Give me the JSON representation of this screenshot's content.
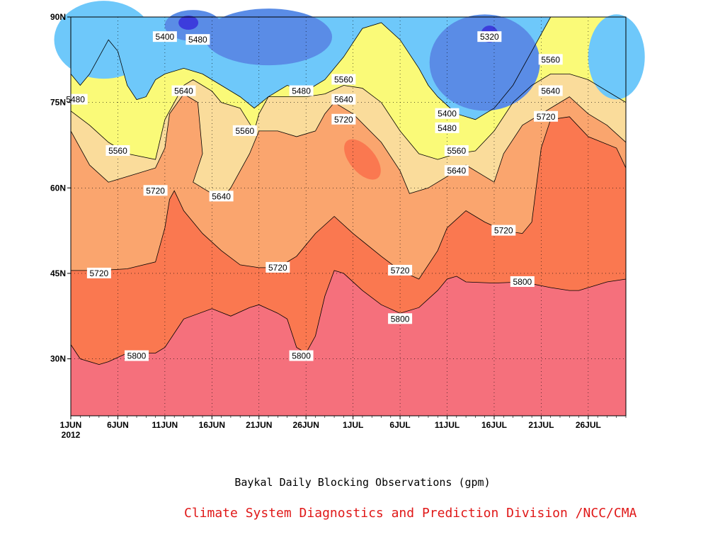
{
  "chart_data": {
    "type": "heatmap",
    "subtype": "filled-contour",
    "title": "Baykal Daily Blocking Observations (gpm)",
    "xlabel": "",
    "ylabel": "",
    "units": "gpm",
    "year_label": "2012",
    "x_range_days": [
      0,
      59
    ],
    "y_range_deg": [
      20,
      90
    ],
    "x_ticks": [
      {
        "day": 0,
        "label": "1JUN"
      },
      {
        "day": 5,
        "label": "6JUN"
      },
      {
        "day": 10,
        "label": "11JUN"
      },
      {
        "day": 15,
        "label": "16JUN"
      },
      {
        "day": 20,
        "label": "21JUN"
      },
      {
        "day": 25,
        "label": "26JUN"
      },
      {
        "day": 30,
        "label": "1JUL"
      },
      {
        "day": 35,
        "label": "6JUL"
      },
      {
        "day": 40,
        "label": "11JUL"
      },
      {
        "day": 45,
        "label": "16JUL"
      },
      {
        "day": 50,
        "label": "21JUL"
      },
      {
        "day": 55,
        "label": "26JUL"
      }
    ],
    "y_ticks": [
      {
        "lat": 30,
        "label": "30N"
      },
      {
        "lat": 45,
        "label": "45N"
      },
      {
        "lat": 60,
        "label": "60N"
      },
      {
        "lat": 75,
        "label": "75N"
      },
      {
        "lat": 90,
        "label": "90N"
      }
    ],
    "levels": [
      {
        "value": 5240,
        "color": "#3c3cdc"
      },
      {
        "value": 5320,
        "color": "#5a8ce6"
      },
      {
        "value": 5400,
        "color": "#6ec8fa"
      },
      {
        "value": 5480,
        "color": "#fafa78"
      },
      {
        "value": 5560,
        "color": "#fadc9b"
      },
      {
        "value": 5640,
        "color": "#faa56e"
      },
      {
        "value": 5720,
        "color": "#fa7850"
      },
      {
        "value": 5800,
        "color": "#f5707c"
      }
    ],
    "contour_5800_lat": [
      [
        0,
        32.5
      ],
      [
        1,
        30
      ],
      [
        3,
        29
      ],
      [
        4,
        29.5
      ],
      [
        6,
        31
      ],
      [
        9,
        31
      ],
      [
        10,
        32
      ],
      [
        12,
        37
      ],
      [
        15,
        38.8
      ],
      [
        17,
        37.5
      ],
      [
        19,
        39
      ],
      [
        20,
        39.5
      ],
      [
        22,
        38
      ],
      [
        23,
        37
      ],
      [
        24,
        32
      ],
      [
        25,
        31
      ],
      [
        26,
        34
      ],
      [
        27,
        41
      ],
      [
        28,
        45.5
      ],
      [
        29,
        45
      ],
      [
        31,
        42
      ],
      [
        33,
        39.5
      ],
      [
        35,
        38
      ],
      [
        37,
        39
      ],
      [
        39,
        42
      ],
      [
        40,
        44
      ],
      [
        41,
        44.5
      ],
      [
        42,
        43.5
      ],
      [
        45,
        43.3
      ],
      [
        48,
        43.5
      ],
      [
        51,
        42.5
      ],
      [
        53,
        42
      ],
      [
        54,
        42
      ],
      [
        57,
        43.5
      ],
      [
        59,
        44
      ]
    ],
    "contour_5720_lat": [
      [
        0,
        45.5
      ],
      [
        3,
        45.5
      ],
      [
        6,
        45.8
      ],
      [
        9,
        47
      ],
      [
        10,
        53
      ],
      [
        10.5,
        58
      ],
      [
        11,
        59.5
      ],
      [
        12,
        56
      ],
      [
        14,
        52
      ],
      [
        16,
        49
      ],
      [
        18,
        46.5
      ],
      [
        20,
        46
      ],
      [
        22,
        46
      ],
      [
        24,
        48
      ],
      [
        26,
        52
      ],
      [
        28,
        55
      ],
      [
        30,
        52
      ],
      [
        33,
        48
      ],
      [
        35,
        45.5
      ],
      [
        37,
        44
      ],
      [
        39,
        49
      ],
      [
        40,
        53
      ],
      [
        42,
        56
      ],
      [
        44,
        54
      ],
      [
        46,
        52.5
      ],
      [
        48,
        52
      ],
      [
        49,
        54
      ],
      [
        50,
        67
      ],
      [
        51,
        72
      ],
      [
        53,
        72.5
      ],
      [
        55,
        69
      ],
      [
        58,
        67
      ],
      [
        59,
        63.5
      ]
    ],
    "contour_5640_lat": [
      [
        0,
        70
      ],
      [
        2,
        64
      ],
      [
        4,
        61
      ],
      [
        6,
        62
      ],
      [
        9,
        63.5
      ],
      [
        10,
        67
      ],
      [
        10.5,
        73
      ],
      [
        12,
        76.5
      ],
      [
        13.5,
        75
      ],
      [
        14,
        66
      ],
      [
        13,
        61
      ],
      [
        15,
        59
      ],
      [
        16,
        58
      ],
      [
        17,
        60
      ],
      [
        19,
        66
      ],
      [
        20,
        70
      ],
      [
        22,
        70
      ],
      [
        24,
        69
      ],
      [
        26,
        70
      ],
      [
        27,
        73
      ],
      [
        28,
        75
      ],
      [
        30,
        73
      ],
      [
        33,
        68
      ],
      [
        35,
        63
      ],
      [
        36,
        59
      ],
      [
        38,
        60
      ],
      [
        40,
        62
      ],
      [
        42,
        64
      ],
      [
        44,
        62
      ],
      [
        45,
        61
      ],
      [
        46,
        66
      ],
      [
        48,
        71
      ],
      [
        50,
        73
      ],
      [
        52,
        75
      ],
      [
        53,
        76
      ],
      [
        55,
        73
      ],
      [
        57,
        71
      ],
      [
        59,
        68
      ]
    ],
    "contour_5560_lat": [
      [
        0,
        73.5
      ],
      [
        2,
        71
      ],
      [
        4,
        68
      ],
      [
        6,
        66
      ],
      [
        9,
        65
      ],
      [
        10,
        72
      ],
      [
        11,
        75
      ],
      [
        12,
        78
      ],
      [
        13,
        79
      ],
      [
        15,
        77
      ],
      [
        16,
        75
      ],
      [
        18,
        74
      ],
      [
        19.5,
        70
      ],
      [
        20,
        73
      ],
      [
        21,
        76
      ],
      [
        23,
        76
      ],
      [
        25,
        76
      ],
      [
        27,
        76.5
      ],
      [
        29,
        78
      ],
      [
        31,
        77.5
      ],
      [
        33,
        75
      ],
      [
        35,
        70
      ],
      [
        37,
        66
      ],
      [
        39,
        65
      ],
      [
        41,
        66
      ],
      [
        43,
        66.5
      ],
      [
        45,
        70
      ],
      [
        47,
        75
      ],
      [
        49,
        78
      ],
      [
        51,
        80
      ],
      [
        53,
        80
      ],
      [
        55,
        79
      ],
      [
        57,
        77
      ],
      [
        59,
        75
      ]
    ],
    "contour_5480_lat": [
      [
        0,
        80
      ],
      [
        1,
        78
      ],
      [
        2,
        80
      ],
      [
        4,
        86
      ],
      [
        5,
        84
      ],
      [
        6,
        78
      ],
      [
        7,
        75.5
      ],
      [
        8,
        76
      ],
      [
        9,
        79
      ],
      [
        10,
        80
      ],
      [
        12,
        81
      ],
      [
        14,
        80
      ],
      [
        16,
        78
      ],
      [
        18,
        76
      ],
      [
        19.5,
        74
      ],
      [
        21,
        76
      ],
      [
        23,
        78
      ],
      [
        25,
        77
      ],
      [
        27,
        79
      ],
      [
        29,
        83
      ],
      [
        31,
        88
      ],
      [
        33,
        89
      ],
      [
        35,
        86
      ],
      [
        37,
        81
      ],
      [
        38,
        78
      ],
      [
        39,
        76
      ],
      [
        41,
        73
      ],
      [
        43,
        72
      ],
      [
        45,
        74
      ],
      [
        47,
        78
      ],
      [
        49,
        84
      ],
      [
        51,
        90
      ],
      [
        59,
        90
      ]
    ],
    "contour_labels": [
      {
        "text": "5800",
        "day": 7,
        "lat": 30.5
      },
      {
        "text": "5800",
        "day": 24.5,
        "lat": 30.5
      },
      {
        "text": "5800",
        "day": 35,
        "lat": 37
      },
      {
        "text": "5800",
        "day": 48,
        "lat": 43.5
      },
      {
        "text": "5720",
        "day": 3,
        "lat": 45
      },
      {
        "text": "5720",
        "day": 22,
        "lat": 46
      },
      {
        "text": "5720",
        "day": 35,
        "lat": 45.5
      },
      {
        "text": "5720",
        "day": 46,
        "lat": 52.5
      },
      {
        "text": "5720",
        "day": 9,
        "lat": 59.5
      },
      {
        "text": "5720",
        "day": 29,
        "lat": 72
      },
      {
        "text": "5720",
        "day": 50.5,
        "lat": 72.5
      },
      {
        "text": "5640",
        "day": 16,
        "lat": 58.5
      },
      {
        "text": "5640",
        "day": 41,
        "lat": 63
      },
      {
        "text": "5640",
        "day": 12,
        "lat": 77
      },
      {
        "text": "5640",
        "day": 29,
        "lat": 75.5
      },
      {
        "text": "5640",
        "day": 51,
        "lat": 77
      },
      {
        "text": "5560",
        "day": 5,
        "lat": 66.5
      },
      {
        "text": "5560",
        "day": 18.5,
        "lat": 70
      },
      {
        "text": "5560",
        "day": 41,
        "lat": 66.5
      },
      {
        "text": "5560",
        "day": 29,
        "lat": 79
      },
      {
        "text": "5560",
        "day": 51,
        "lat": 82.5
      },
      {
        "text": "5480",
        "day": 0.5,
        "lat": 75.5
      },
      {
        "text": "5480",
        "day": 24.5,
        "lat": 77
      },
      {
        "text": "5480",
        "day": 40,
        "lat": 70.5
      },
      {
        "text": "5480",
        "day": 13.5,
        "lat": 86
      },
      {
        "text": "5400",
        "day": 10,
        "lat": 86.5
      },
      {
        "text": "5400",
        "day": 40,
        "lat": 73
      },
      {
        "text": "5320",
        "day": 44.5,
        "lat": 86.5
      }
    ]
  },
  "credit": "Climate System Diagnostics and Prediction Division /NCC/CMA",
  "colors": {
    "axis": "#000000",
    "credit": "#e01818",
    "grid": "#000000"
  }
}
